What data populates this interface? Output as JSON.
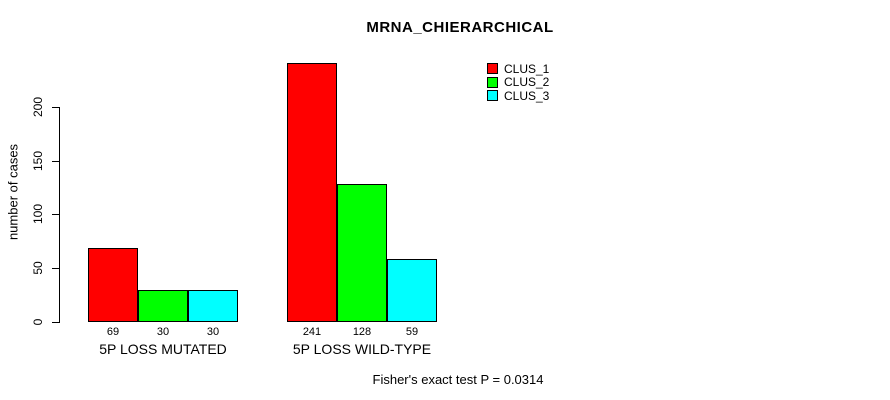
{
  "title": "MRNA_CHIERARCHICAL",
  "footer": "Fisher's exact test P = 0.0314",
  "legend": {
    "items": [
      {
        "label": "CLUS_1",
        "color": "#ff0000"
      },
      {
        "label": "CLUS_2",
        "color": "#00ff00"
      },
      {
        "label": "CLUS_3",
        "color": "#00ffff"
      }
    ]
  },
  "chart_data": {
    "type": "bar",
    "title": "MRNA_CHIERARCHICAL",
    "xlabel": "",
    "ylabel": "number of cases",
    "categories": [
      "5P LOSS MUTATED",
      "5P LOSS WILD-TYPE"
    ],
    "series": [
      {
        "name": "CLUS_1",
        "color": "#ff0000",
        "values": [
          69,
          241
        ]
      },
      {
        "name": "CLUS_2",
        "color": "#00ff00",
        "values": [
          30,
          128
        ]
      },
      {
        "name": "CLUS_3",
        "color": "#00ffff",
        "values": [
          30,
          59
        ]
      }
    ],
    "bar_value_labels": [
      [
        "69",
        "30",
        "30"
      ],
      [
        "241",
        "128",
        "59"
      ]
    ],
    "yticks": [
      0,
      50,
      100,
      150,
      200
    ],
    "ylim": [
      0,
      245
    ],
    "grid": false,
    "legend_position": "top-right",
    "annotation": "Fisher's exact test P = 0.0314"
  }
}
